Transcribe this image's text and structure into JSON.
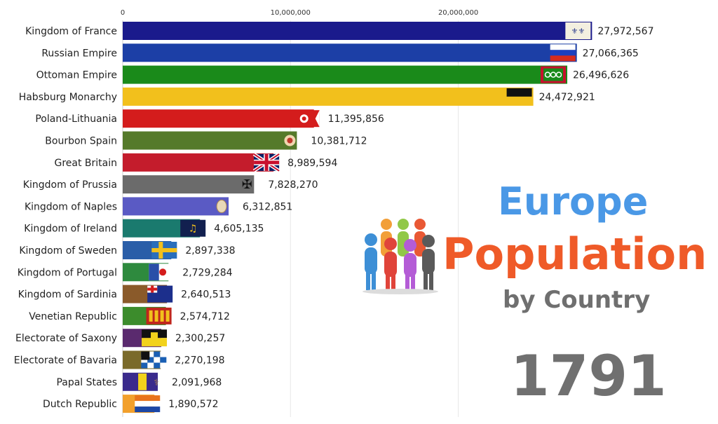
{
  "chart_data": {
    "type": "bar",
    "orientation": "horizontal",
    "x_ticks": [
      "0",
      "10,000,000",
      "20,000,000"
    ],
    "xlim": [
      0,
      28000000
    ],
    "categories": [
      "Kingdom of France",
      "Russian Empire",
      "Ottoman Empire",
      "Habsburg Monarchy",
      "Poland-Lithuania",
      "Bourbon Spain",
      "Great Britain",
      "Kingdom of Prussia",
      "Kingdom of Naples",
      "Kingdom of Ireland",
      "Kingdom of Sweden",
      "Kingdom of Portugal",
      "Kingdom of Sardinia",
      "Venetian Republic",
      "Electorate of Saxony",
      "Electorate of Bavaria",
      "Papal States",
      "Dutch Republic"
    ],
    "values": [
      27972567,
      27066365,
      26496626,
      24472921,
      11395856,
      10381712,
      8989594,
      7828270,
      6312851,
      4605135,
      2897338,
      2729284,
      2640513,
      2574712,
      2300257,
      2270198,
      2091968,
      1890572
    ],
    "value_labels": [
      "27,972,567",
      "27,066,365",
      "26,496,626",
      "24,472,921",
      "11,395,856",
      "10,381,712",
      "8,989,594",
      "7,828,270",
      "6,312,851",
      "4,605,135",
      "2,897,338",
      "2,729,284",
      "2,640,513",
      "2,574,712",
      "2,300,257",
      "2,270,198",
      "2,091,968",
      "1,890,572"
    ],
    "colors": [
      "#1a1a8c",
      "#1c3fa6",
      "#1a8a1a",
      "#f2c01c",
      "#d41c1c",
      "#557a2a",
      "#c41c2c",
      "#6b6b6b",
      "#5a5ac4",
      "#1a7a6e",
      "#2a5ea8",
      "#2e8a3e",
      "#8a5a2a",
      "#3c8c2c",
      "#5a2a6e",
      "#7a6a2a",
      "#3a2a8c",
      "#f2a02c"
    ],
    "flag_icons": [
      "france-royal-flag-icon",
      "russia-flag-icon",
      "ottoman-flag-icon",
      "habsburg-flag-icon",
      "poland-lithuania-flag-icon",
      "spain-coat-of-arms-icon",
      "union-jack-icon",
      "prussia-eagle-icon",
      "naples-coat-of-arms-icon",
      "ireland-harp-flag-icon",
      "sweden-flag-icon",
      "portugal-flag-icon",
      "sardinia-flag-icon",
      "venice-flag-icon",
      "saxony-flag-icon",
      "bavaria-flag-icon",
      "papal-states-flag-icon",
      "dutch-flag-icon"
    ],
    "grid": true
  },
  "title": {
    "line1": "Europe",
    "line2": "Population",
    "line3": "by Country"
  },
  "year": "1791",
  "colors": {
    "europe": "#4a98e6",
    "population": "#ef5a28",
    "by_country": "#6f6f6f",
    "year": "#707070"
  }
}
